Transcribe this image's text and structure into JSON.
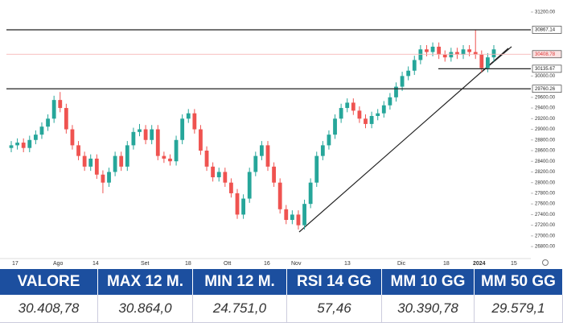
{
  "chart_data": {
    "type": "candlestick",
    "up_color": "#26a69a",
    "down_color": "#ef5350",
    "ylim": [
      26590,
      31275
    ],
    "yticks": [
      {
        "value": 31200,
        "label": "31200.00"
      },
      {
        "value": 30000,
        "label": "30000.00"
      },
      {
        "value": 29600,
        "label": "29600.00"
      },
      {
        "value": 29400,
        "label": "29400.00"
      },
      {
        "value": 29200,
        "label": "29200.00"
      },
      {
        "value": 29000,
        "label": "29000.00"
      },
      {
        "value": 28800,
        "label": "28800.00"
      },
      {
        "value": 28600,
        "label": "28600.00"
      },
      {
        "value": 28400,
        "label": "28400.00"
      },
      {
        "value": 28200,
        "label": "28200.00"
      },
      {
        "value": 28000,
        "label": "28000.00"
      },
      {
        "value": 27800,
        "label": "27800.00"
      },
      {
        "value": 27600,
        "label": "27600.00"
      },
      {
        "value": 27400,
        "label": "27400.00"
      },
      {
        "value": 27200,
        "label": "27200.00"
      },
      {
        "value": 27000,
        "label": "27000.00"
      },
      {
        "value": 26800,
        "label": "26800.00"
      }
    ],
    "levels": [
      30867.14,
      29760.26,
      30135.67,
      30408.78
    ],
    "x_labels": [
      "17",
      "Ago",
      "14",
      "Set",
      "18",
      "Ott",
      "16",
      "Nov",
      "13",
      "Dic",
      "18",
      "2024",
      "15"
    ],
    "open": [
      28650,
      28700,
      28750,
      28650,
      28800,
      28900,
      29050,
      29200,
      29550,
      29400,
      29000,
      28700,
      28500,
      28300,
      28450,
      28150,
      28000,
      28200,
      28500,
      28300,
      28700,
      28950,
      29000,
      28800,
      29000,
      28500,
      28450,
      28400,
      28800,
      29200,
      29300,
      29000,
      28600,
      28300,
      28100,
      28200,
      28000,
      27800,
      27400,
      27700,
      28200,
      28500,
      28700,
      28300,
      28000,
      27500,
      27300,
      27400,
      27200,
      27600,
      28000,
      28500,
      28700,
      28900,
      29200,
      29400,
      29500,
      29350,
      29200,
      29100,
      29250,
      29300,
      29450,
      29600,
      29800,
      30000,
      30100,
      30300,
      30500,
      30450,
      30550,
      30400,
      30350,
      30450,
      30400,
      30500,
      30450,
      30400,
      30150,
      30350
    ],
    "high": [
      28780,
      28830,
      28830,
      28880,
      28980,
      29130,
      29280,
      29630,
      29700,
      29480,
      29080,
      28780,
      28580,
      28530,
      28530,
      28230,
      28280,
      28580,
      28580,
      28780,
      29030,
      29100,
      29080,
      29080,
      29080,
      28580,
      28530,
      28880,
      29280,
      29380,
      29380,
      29080,
      28680,
      28380,
      28280,
      28280,
      28080,
      27880,
      27780,
      28280,
      28580,
      28780,
      28780,
      28380,
      28080,
      27580,
      27480,
      27480,
      27680,
      28080,
      28580,
      28780,
      28980,
      29280,
      29480,
      29580,
      29580,
      29430,
      29280,
      29330,
      29380,
      29530,
      29680,
      29880,
      30080,
      30180,
      30380,
      30580,
      30580,
      30630,
      30630,
      30480,
      30530,
      30530,
      30580,
      30580,
      30867,
      30480,
      30430,
      30580
    ],
    "low": [
      28570,
      28620,
      28570,
      28570,
      28720,
      28820,
      28970,
      29120,
      29320,
      28920,
      28620,
      28420,
      28220,
      28220,
      28070,
      27800,
      27920,
      28120,
      28220,
      28220,
      28620,
      28870,
      28720,
      28720,
      28420,
      28370,
      28320,
      28320,
      28720,
      29120,
      28920,
      28520,
      28220,
      28020,
      28020,
      27920,
      27720,
      27320,
      27320,
      27620,
      28120,
      28420,
      28220,
      27920,
      27420,
      27220,
      27220,
      27120,
      27120,
      27520,
      27920,
      28420,
      28620,
      28820,
      29120,
      29320,
      29270,
      29120,
      29020,
      29020,
      29170,
      29220,
      29370,
      29520,
      29720,
      29920,
      30020,
      30220,
      30370,
      30370,
      30320,
      30270,
      30270,
      30320,
      30320,
      30370,
      30320,
      30070,
      30070,
      30270
    ],
    "close": [
      28700,
      28750,
      28650,
      28800,
      28900,
      29050,
      29200,
      29550,
      29400,
      29000,
      28700,
      28500,
      28300,
      28450,
      28150,
      28000,
      28200,
      28500,
      28300,
      28700,
      28950,
      29000,
      28800,
      29000,
      28500,
      28450,
      28400,
      28800,
      29200,
      29300,
      29000,
      28600,
      28300,
      28100,
      28200,
      28000,
      27800,
      27400,
      27700,
      28200,
      28500,
      28700,
      28300,
      28000,
      27500,
      27300,
      27400,
      27200,
      27600,
      28000,
      28500,
      28700,
      28900,
      29200,
      29400,
      29500,
      29350,
      29200,
      29100,
      29250,
      29300,
      29450,
      29600,
      29800,
      30000,
      30100,
      30300,
      30500,
      30450,
      30550,
      30400,
      30350,
      30450,
      30400,
      30500,
      30450,
      30400,
      30150,
      30350,
      30500
    ]
  },
  "table": {
    "headers": [
      "VALORE",
      "MAX 12 M.",
      "MIN 12 M.",
      "RSI 14 GG",
      "MM 10 GG",
      "MM 50 GG"
    ],
    "rows": [
      [
        "30.408,78",
        "30.864,0",
        "24.751,0",
        "57,46",
        "30.390,78",
        "29.579,1"
      ]
    ]
  }
}
